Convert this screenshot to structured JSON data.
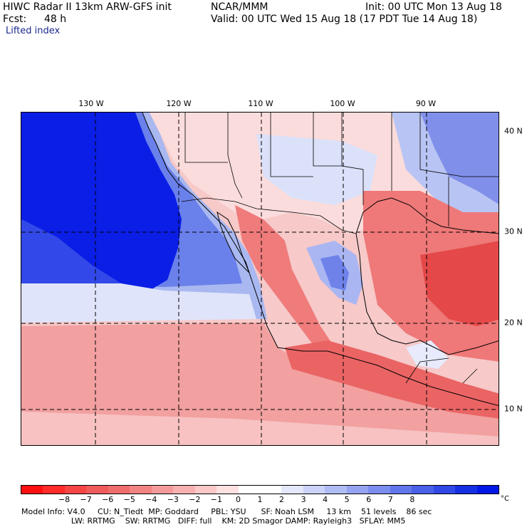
{
  "header": {
    "title": "HIWC Radar II 13km ARW-GFS init",
    "org": "NCAR/MMM",
    "init": "Init: 00 UTC Mon 13 Aug 18",
    "fcst_label": "Fcst:",
    "fcst_value": "48 h",
    "valid": "Valid: 00 UTC Wed 15 Aug 18 (17 PDT Tue 14 Aug 18)",
    "field": "Lifted index"
  },
  "map": {
    "lon_labels": [
      "130 W",
      "120 W",
      "110 W",
      "100 W",
      "90 W"
    ],
    "lat_labels": [
      "40 N",
      "30 N",
      "20 N",
      "10 N"
    ],
    "colors": {
      "ocean_deep": "#0a1ee6",
      "ocean_mid": "#4660e6",
      "ocean_light": "#a9b8f0",
      "pale_blue": "#dfe4fa",
      "pale_red": "#fbd8d8",
      "light_red": "#f6a9a9",
      "mid_red": "#ef6a6a",
      "strong_red": "#e63b3b"
    }
  },
  "colorbar": {
    "colors": [
      "#ff1010",
      "#ff2a2a",
      "#f54545",
      "#ef5a5a",
      "#ef6d6d",
      "#f28383",
      "#f59a9a",
      "#f7b1b1",
      "#fac8c8",
      "#fde0e0",
      "#ffffff",
      "#ffffff",
      "#e4e8fb",
      "#cbd3f8",
      "#b0bcf4",
      "#95a4f1",
      "#7b8dee",
      "#6276eb",
      "#4a60e8",
      "#3048e6",
      "#1530e4",
      "#0018e6"
    ],
    "ticks": [
      "−8",
      "−7",
      "−6",
      "−5",
      "−4",
      "−3",
      "−2",
      "−1",
      "0",
      "1",
      "2",
      "3",
      "4",
      "5",
      "6",
      "7",
      "8"
    ],
    "unit": "°C"
  },
  "info": {
    "line1": "Model Info: V4.0     CU: N_Tiedt  MP: Goddard     PBL: YSU      SF: Noah LSM     13 km    51 levels    86 sec",
    "line2": "                    LW: RRTMG    SW: RRTMG   DIFF: full    KM: 2D Smagor DAMP: Rayleigh3   SFLAY: MM5"
  }
}
